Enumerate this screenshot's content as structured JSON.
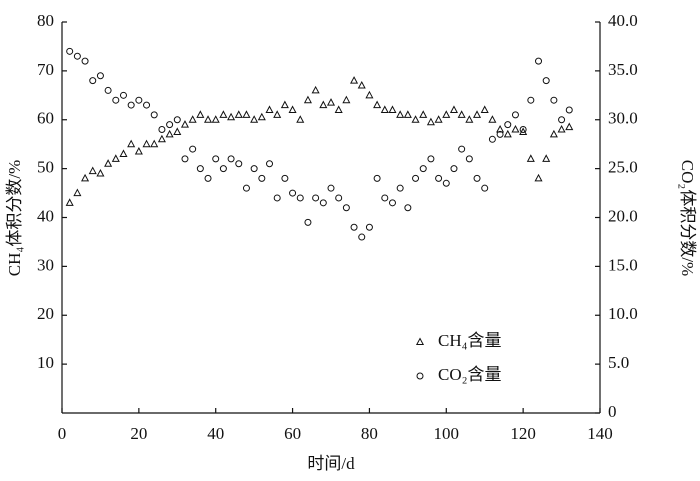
{
  "chart_data": {
    "type": "scatter",
    "x_label": "时间/d",
    "y_label": "CH₄体积分数/%",
    "y2_label": "CO₂体积分数/%",
    "x": [
      2,
      4,
      6,
      8,
      10,
      12,
      14,
      16,
      18,
      20,
      22,
      24,
      26,
      28,
      30,
      32,
      34,
      36,
      38,
      40,
      42,
      44,
      46,
      48,
      50,
      52,
      54,
      56,
      58,
      60,
      62,
      64,
      66,
      68,
      70,
      72,
      74,
      76,
      78,
      80,
      82,
      84,
      86,
      88,
      90,
      92,
      94,
      96,
      98,
      100,
      102,
      104,
      106,
      108,
      110,
      112,
      114,
      116,
      118,
      120,
      122,
      124,
      126,
      128,
      130,
      132
    ],
    "series": [
      {
        "name": "CH₄含量",
        "marker": "triangle",
        "color": "#111111",
        "values": [
          43,
          45,
          48,
          49.5,
          49,
          51,
          52,
          53,
          55,
          53.5,
          55,
          55,
          56,
          57,
          57.5,
          59,
          60,
          61,
          60,
          60,
          61,
          60.5,
          61,
          61,
          60,
          60.5,
          62,
          61,
          63,
          62,
          60,
          64,
          66,
          63,
          63.5,
          62,
          64,
          68,
          67,
          65,
          63,
          62,
          62,
          61,
          61,
          60,
          61,
          59.5,
          60,
          61,
          62,
          61,
          60,
          61,
          62,
          60,
          58,
          57,
          58,
          57.5,
          52,
          48,
          52,
          57,
          58,
          58.5
        ]
      },
      {
        "name": "CO₂含量",
        "marker": "circle",
        "color": "#111111",
        "axis": "y2",
        "values": [
          37,
          36.5,
          36,
          34,
          34.5,
          33,
          32,
          32.5,
          31.5,
          32,
          31.5,
          30.5,
          29,
          29.5,
          30,
          26,
          27,
          25,
          24,
          26,
          25,
          26,
          25.5,
          23,
          25,
          24,
          25.5,
          22,
          24,
          22.5,
          22,
          19.5,
          22,
          21.5,
          23,
          22,
          21,
          19,
          18,
          19,
          24,
          22,
          21.5,
          23,
          21,
          24,
          25,
          26,
          24,
          23.5,
          25,
          27,
          26,
          24,
          23,
          28,
          28.5,
          29.5,
          30.5,
          29,
          32,
          36,
          34,
          32,
          30,
          31
        ]
      }
    ],
    "xlim": [
      0,
      140
    ],
    "xticks": [
      0,
      20,
      40,
      60,
      80,
      100,
      120,
      140
    ],
    "ylim": [
      0,
      80
    ],
    "yticks": [
      10,
      20,
      30,
      40,
      50,
      60,
      70,
      80
    ],
    "y2lim": [
      0,
      40
    ],
    "y2ticks": [
      0,
      {
        "value": 5,
        "label": "5.0"
      },
      {
        "value": 10,
        "label": "10.0"
      },
      {
        "value": 15,
        "label": "15.0"
      },
      {
        "value": 20,
        "label": "20.0"
      },
      {
        "value": 25,
        "label": "25.0"
      },
      {
        "value": 30,
        "label": "30.0"
      },
      {
        "value": 35,
        "label": "35.0"
      },
      {
        "value": 40,
        "label": "40.0"
      }
    ],
    "xtick_zero": 0,
    "legend": "lower right"
  }
}
